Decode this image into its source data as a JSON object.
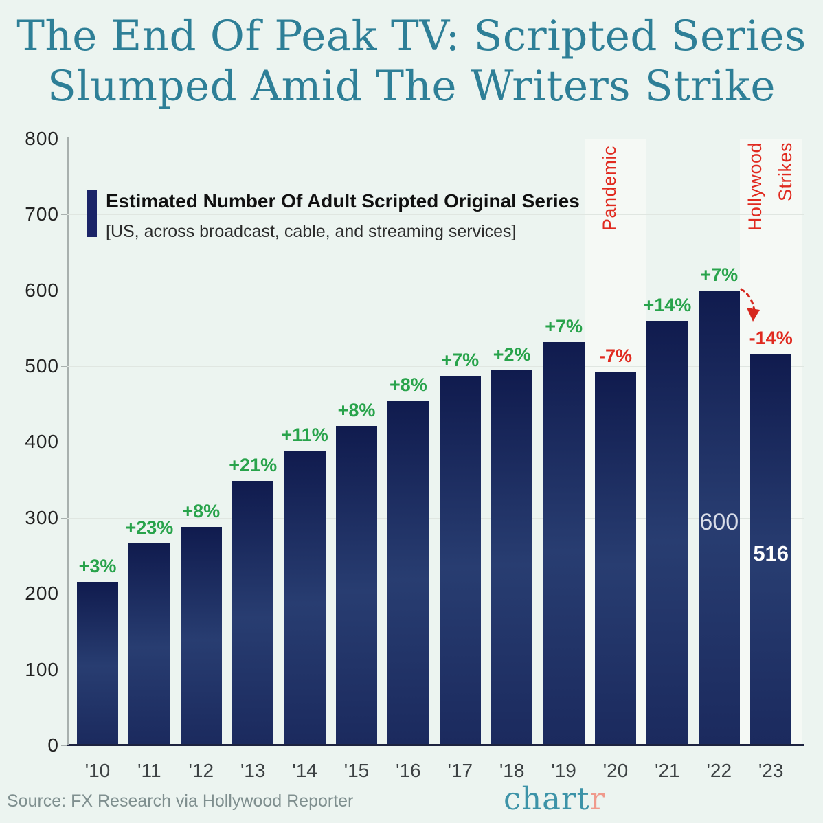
{
  "title": {
    "line1": "The End Of Peak TV: Scripted Series",
    "line2": "Slumped Amid The Writers Strike"
  },
  "legend": {
    "title": "Estimated Number Of Adult Scripted Original Series",
    "subtitle": "[US, across broadcast, cable, and streaming services]"
  },
  "annotations": {
    "pandemic": "Pandemic",
    "hollywood_line1": "Hollywood",
    "hollywood_line2": "Strikes"
  },
  "footer": {
    "source": "Source: FX Research via Hollywood Reporter",
    "logo_main": "chart",
    "logo_accent": "r"
  },
  "colors": {
    "background": "#ecf4f0",
    "title": "#2e7f97",
    "bar_top": "#101b4e",
    "bar_mid": "#283d71",
    "bar_bottom": "#1b2a5e",
    "positive": "#28a34b",
    "negative": "#e02a1f",
    "logo_teal": "#3d93a8",
    "logo_salmon": "#f09a8c"
  },
  "chart_data": {
    "type": "bar",
    "title": "Estimated Number Of Adult Scripted Original Series",
    "subtitle": "[US, across broadcast, cable, and streaming services]",
    "categories": [
      "'10",
      "'11",
      "'12",
      "'13",
      "'14",
      "'15",
      "'16",
      "'17",
      "'18",
      "'19",
      "'20",
      "'21",
      "'22",
      "'23"
    ],
    "values": [
      216,
      266,
      288,
      349,
      389,
      421,
      455,
      487,
      495,
      532,
      493,
      560,
      600,
      516
    ],
    "pct_labels": [
      "+3%",
      "+23%",
      "+8%",
      "+21%",
      "+11%",
      "+8%",
      "+8%",
      "+7%",
      "+2%",
      "+7%",
      "-7%",
      "+14%",
      "+7%",
      "-14%"
    ],
    "inner_labels": [
      {
        "index": 12,
        "text": "600",
        "style": "light"
      },
      {
        "index": 13,
        "text": "516",
        "style": "bold"
      }
    ],
    "highlight_columns": [
      10,
      13
    ],
    "ylim": [
      0,
      800
    ],
    "yticks": [
      0,
      100,
      200,
      300,
      400,
      500,
      600,
      700,
      800
    ],
    "xlabel": "",
    "ylabel": "",
    "grid": true,
    "legend_position": "upper-left"
  }
}
